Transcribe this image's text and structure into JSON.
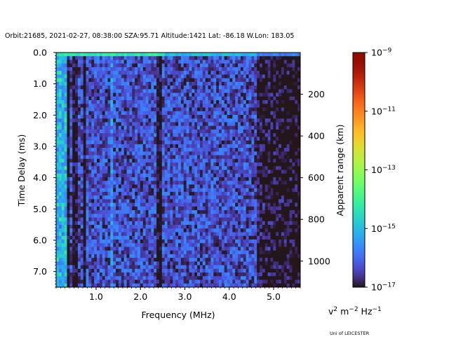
{
  "chart_data": {
    "type": "heatmap",
    "title": "Orbit:21685, 2021-02-27, 08:38:00 SZA:95.71 Altitude:1421 Lat: -86.18 W.Lon: 183.05",
    "xlabel": "Frequency (MHz)",
    "ylabel": "Time Delay (ms)",
    "y2label": "Apparent range (km)",
    "xlim": [
      0.1,
      5.6
    ],
    "ylim": [
      7.5,
      0.0
    ],
    "y2lim": [
      0,
      1125
    ],
    "x_ticks": [
      1.0,
      2.0,
      3.0,
      4.0,
      5.0
    ],
    "x_tick_labels": [
      "1.0",
      "2.0",
      "3.0",
      "4.0",
      "5.0"
    ],
    "y_ticks": [
      0.0,
      1.0,
      2.0,
      3.0,
      4.0,
      5.0,
      6.0,
      7.0
    ],
    "y_tick_labels": [
      "0.0",
      "1.0",
      "2.0",
      "3.0",
      "4.0",
      "5.0",
      "6.0",
      "7.0"
    ],
    "y2_ticks": [
      200,
      400,
      600,
      800,
      1000
    ],
    "y2_tick_labels": [
      "200",
      "400",
      "600",
      "800",
      "1000"
    ],
    "colorbar": {
      "min_exponent": -17,
      "max_exponent": -9,
      "ticks": [
        -17,
        -15,
        -13,
        -11,
        -9
      ],
      "tick_labels": [
        "10−17",
        "10−15",
        "10−13",
        "10−11",
        "10−9"
      ],
      "label": "v2 m−2 Hz−1",
      "colormap": "turbo"
    },
    "grid": {
      "frequency_start": 0.1,
      "frequency_end": 5.6,
      "delay_start": 0.0,
      "delay_end": 7.5,
      "n_freq": 90,
      "n_delay": 64,
      "background_log": -16.3,
      "noise_amplitude": 0.7,
      "dark_columns_mhz": [
        0.35,
        0.48,
        0.72,
        2.37,
        2.41
      ],
      "bright_column_mhz": 1.32,
      "bright_top_row_log": -14.3,
      "low_freq_bright_cutoff_mhz": 0.3,
      "quiet_region_start_mhz": 4.6
    }
  },
  "footer": {
    "unit_label_base": "v",
    "unit_label_sup1": "2",
    "unit_label_mid": " m",
    "unit_label_sup2": "−2",
    "unit_label_end": " Hz",
    "unit_label_sup3": "−1",
    "credit": "Uni of LEICESTER"
  }
}
